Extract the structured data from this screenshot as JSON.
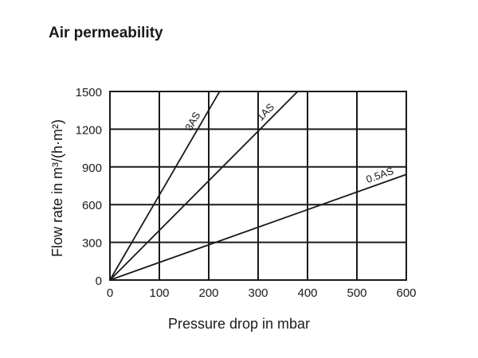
{
  "chart_data": {
    "type": "line",
    "title": "Air permeability",
    "xlabel": "Pressure drop in mbar",
    "ylabel": "Flow rate in m³/(h·m²)",
    "xlim": [
      0,
      600
    ],
    "ylim": [
      0,
      1500
    ],
    "xticks": [
      0,
      100,
      200,
      300,
      400,
      500,
      600
    ],
    "yticks": [
      0,
      300,
      600,
      900,
      1200,
      1500
    ],
    "grid": true,
    "series": [
      {
        "name": "3AS",
        "x": [
          0,
          222
        ],
        "y": [
          0,
          1500
        ]
      },
      {
        "name": "1AS",
        "x": [
          0,
          380
        ],
        "y": [
          0,
          1500
        ]
      },
      {
        "name": "0.5AS",
        "x": [
          0,
          600
        ],
        "y": [
          0,
          840
        ]
      }
    ]
  }
}
